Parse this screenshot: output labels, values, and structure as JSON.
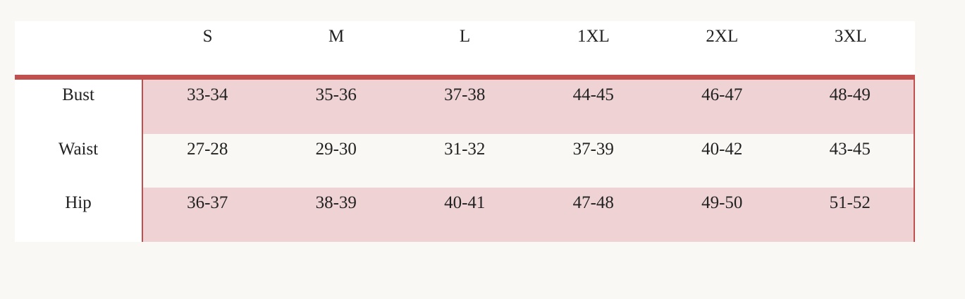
{
  "colors": {
    "accent": "#c0504d",
    "row_pink": "#efd3d4",
    "row_light": "#f9f8f4"
  },
  "header": [
    "",
    "S",
    "M",
    "L",
    "1XL",
    "2XL",
    "3XL"
  ],
  "rows": [
    {
      "label": "Bust",
      "values": [
        "33-34",
        "35-36",
        "37-38",
        "44-45",
        "46-47",
        "48-49"
      ]
    },
    {
      "label": "Waist",
      "values": [
        "27-28",
        "29-30",
        "31-32",
        "37-39",
        "40-42",
        "43-45"
      ]
    },
    {
      "label": "Hip",
      "values": [
        "36-37",
        "38-39",
        "40-41",
        "47-48",
        "49-50",
        "51-52"
      ]
    }
  ]
}
